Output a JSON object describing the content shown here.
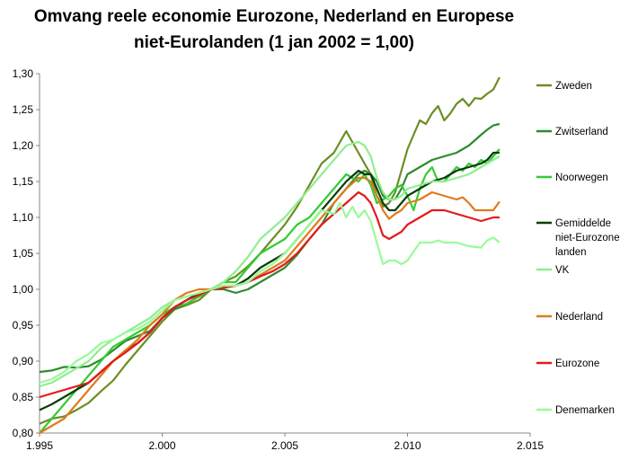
{
  "chart_data": {
    "type": "line",
    "title_lines": [
      "Omvang reele economie Eurozone, Nederland en Europese",
      "niet-Eurolanden (1 jan 2002 = 1,00)"
    ],
    "xlim": [
      1995,
      2015
    ],
    "ylim": [
      0.8,
      1.3
    ],
    "x_ticks": [
      1995,
      2000,
      2005,
      2010,
      2015
    ],
    "x_tick_labels": [
      "1.995",
      "2.000",
      "2.005",
      "2.010",
      "2.015"
    ],
    "y_ticks": [
      0.8,
      0.85,
      0.9,
      0.95,
      1.0,
      1.05,
      1.1,
      1.15,
      1.2,
      1.25,
      1.3
    ],
    "y_tick_labels": [
      "0,80",
      "0,85",
      "0,90",
      "0,95",
      "1,00",
      "1,05",
      "1,10",
      "1,15",
      "1,20",
      "1,25",
      "1,30"
    ],
    "grid": false,
    "legend_position": "right",
    "series": [
      {
        "name": "Zweden",
        "color": "#6b8e23",
        "x": [
          1995,
          1995.5,
          1996,
          1996.5,
          1997,
          1997.5,
          1998,
          1998.5,
          1999,
          1999.5,
          2000,
          2000.5,
          2001,
          2001.5,
          2002,
          2002.5,
          2003,
          2003.5,
          2004,
          2004.5,
          2005,
          2005.5,
          2006,
          2006.5,
          2007,
          2007.25,
          2007.5,
          2007.75,
          2008,
          2008.25,
          2008.5,
          2008.75,
          2009,
          2009.25,
          2009.5,
          2009.75,
          2010,
          2010.25,
          2010.5,
          2010.75,
          2011,
          2011.25,
          2011.5,
          2011.75,
          2012,
          2012.25,
          2012.5,
          2012.75,
          2013,
          2013.25,
          2013.5,
          2013.75
        ],
        "y": [
          0.813,
          0.82,
          0.823,
          0.832,
          0.842,
          0.858,
          0.873,
          0.895,
          0.915,
          0.935,
          0.955,
          0.972,
          0.978,
          0.985,
          1.0,
          1.01,
          1.018,
          1.032,
          1.05,
          1.07,
          1.09,
          1.115,
          1.145,
          1.175,
          1.19,
          1.205,
          1.22,
          1.205,
          1.19,
          1.175,
          1.16,
          1.13,
          1.115,
          1.12,
          1.135,
          1.165,
          1.195,
          1.215,
          1.235,
          1.23,
          1.245,
          1.255,
          1.235,
          1.245,
          1.258,
          1.265,
          1.255,
          1.266,
          1.265,
          1.272,
          1.278,
          1.295
        ]
      },
      {
        "name": "Zwitserland",
        "color": "#2e8b2e",
        "x": [
          1995,
          1995.5,
          1996,
          1996.5,
          1997,
          1997.5,
          1998,
          1998.5,
          1999,
          1999.5,
          2000,
          2000.5,
          2001,
          2001.5,
          2002,
          2002.5,
          2003,
          2003.5,
          2004,
          2004.5,
          2005,
          2005.5,
          2006,
          2006.5,
          2007,
          2007.5,
          2008,
          2008.25,
          2008.5,
          2008.75,
          2009,
          2009.25,
          2009.5,
          2009.75,
          2010,
          2010.5,
          2011,
          2011.5,
          2012,
          2012.5,
          2013,
          2013.25,
          2013.5,
          2013.75
        ],
        "y": [
          0.885,
          0.887,
          0.892,
          0.891,
          0.893,
          0.902,
          0.915,
          0.928,
          0.935,
          0.942,
          0.96,
          0.972,
          0.98,
          0.99,
          1.0,
          1.0,
          0.995,
          1.0,
          1.01,
          1.02,
          1.03,
          1.048,
          1.07,
          1.09,
          1.12,
          1.14,
          1.16,
          1.165,
          1.16,
          1.15,
          1.13,
          1.125,
          1.125,
          1.14,
          1.16,
          1.17,
          1.18,
          1.185,
          1.19,
          1.2,
          1.215,
          1.222,
          1.228,
          1.23
        ]
      },
      {
        "name": "Noorwegen",
        "color": "#33cc33",
        "x": [
          1995,
          1995.5,
          1996,
          1996.5,
          1997,
          1997.5,
          1998,
          1998.5,
          1999,
          1999.5,
          2000,
          2000.5,
          2001,
          2001.5,
          2002,
          2002.5,
          2003,
          2003.5,
          2004,
          2004.5,
          2005,
          2005.5,
          2006,
          2006.5,
          2007,
          2007.5,
          2008,
          2008.25,
          2008.5,
          2008.75,
          2009,
          2009.25,
          2009.5,
          2009.75,
          2010,
          2010.25,
          2010.5,
          2010.75,
          2011,
          2011.25,
          2011.5,
          2011.75,
          2012,
          2012.25,
          2012.5,
          2012.75,
          2013,
          2013.25,
          2013.5,
          2013.75
        ],
        "y": [
          0.8,
          0.82,
          0.84,
          0.86,
          0.88,
          0.9,
          0.92,
          0.93,
          0.94,
          0.95,
          0.965,
          0.975,
          0.98,
          0.99,
          1.0,
          1.01,
          1.01,
          1.03,
          1.05,
          1.06,
          1.07,
          1.09,
          1.1,
          1.12,
          1.14,
          1.16,
          1.15,
          1.16,
          1.145,
          1.12,
          1.125,
          1.13,
          1.14,
          1.145,
          1.13,
          1.11,
          1.14,
          1.16,
          1.17,
          1.15,
          1.15,
          1.16,
          1.17,
          1.165,
          1.175,
          1.17,
          1.18,
          1.175,
          1.185,
          1.195
        ]
      },
      {
        "name": "Gemiddelde niet-Eurozone landen",
        "label_lines": [
          "Gemiddelde",
          "niet-Eurozone",
          "landen"
        ],
        "color": "#0a3d0a",
        "x": [
          1995,
          1995.5,
          1996,
          1996.5,
          1997,
          1997.5,
          1998,
          1998.5,
          1999,
          1999.5,
          2000,
          2000.5,
          2001,
          2001.5,
          2002,
          2002.5,
          2003,
          2003.5,
          2004,
          2004.5,
          2005,
          2005.5,
          2006,
          2006.5,
          2007,
          2007.5,
          2008,
          2008.25,
          2008.5,
          2008.75,
          2009,
          2009.25,
          2009.5,
          2009.75,
          2010,
          2010.5,
          2011,
          2011.5,
          2012,
          2012.5,
          2013,
          2013.25,
          2013.5,
          2013.75
        ],
        "y": [
          0.832,
          0.84,
          0.85,
          0.86,
          0.87,
          0.885,
          0.9,
          0.915,
          0.925,
          0.94,
          0.96,
          0.975,
          0.985,
          0.995,
          1.0,
          1.003,
          1.005,
          1.015,
          1.03,
          1.04,
          1.05,
          1.07,
          1.09,
          1.11,
          1.13,
          1.15,
          1.165,
          1.16,
          1.16,
          1.14,
          1.12,
          1.11,
          1.11,
          1.12,
          1.13,
          1.14,
          1.15,
          1.155,
          1.165,
          1.17,
          1.175,
          1.18,
          1.19,
          1.19
        ]
      },
      {
        "name": "VK",
        "color": "#90ee90",
        "x": [
          1995,
          1995.5,
          1996,
          1996.5,
          1997,
          1997.5,
          1998,
          1998.5,
          1999,
          1999.5,
          2000,
          2000.5,
          2001,
          2001.5,
          2002,
          2002.5,
          2003,
          2003.5,
          2004,
          2004.5,
          2005,
          2005.5,
          2006,
          2006.5,
          2007,
          2007.5,
          2008,
          2008.25,
          2008.5,
          2008.75,
          2009,
          2009.25,
          2009.5,
          2009.75,
          2010,
          2010.5,
          2011,
          2011.5,
          2012,
          2012.5,
          2013,
          2013.25,
          2013.5,
          2013.75
        ],
        "y": [
          0.865,
          0.87,
          0.88,
          0.89,
          0.9,
          0.918,
          0.93,
          0.94,
          0.95,
          0.96,
          0.975,
          0.985,
          0.99,
          0.995,
          1.0,
          1.01,
          1.025,
          1.045,
          1.07,
          1.085,
          1.1,
          1.12,
          1.14,
          1.16,
          1.18,
          1.2,
          1.205,
          1.2,
          1.185,
          1.155,
          1.135,
          1.125,
          1.125,
          1.13,
          1.14,
          1.145,
          1.15,
          1.15,
          1.155,
          1.16,
          1.17,
          1.175,
          1.18,
          1.185
        ]
      },
      {
        "name": "Nederland",
        "color": "#e07a1f",
        "x": [
          1995,
          1995.5,
          1996,
          1996.5,
          1997,
          1997.5,
          1998,
          1998.5,
          1999,
          1999.5,
          2000,
          2000.5,
          2001,
          2001.5,
          2002,
          2002.5,
          2003,
          2003.5,
          2004,
          2004.5,
          2005,
          2005.5,
          2006,
          2006.5,
          2007,
          2007.5,
          2008,
          2008.25,
          2008.5,
          2008.75,
          2009,
          2009.25,
          2009.5,
          2009.75,
          2010,
          2010.5,
          2011,
          2011.5,
          2012,
          2012.25,
          2012.5,
          2012.75,
          2013,
          2013.5,
          2013.75
        ],
        "y": [
          0.8,
          0.81,
          0.82,
          0.84,
          0.86,
          0.88,
          0.9,
          0.915,
          0.93,
          0.95,
          0.965,
          0.985,
          0.995,
          1.0,
          1.0,
          1.005,
          1.005,
          1.01,
          1.02,
          1.03,
          1.04,
          1.06,
          1.08,
          1.1,
          1.12,
          1.14,
          1.155,
          1.155,
          1.15,
          1.13,
          1.11,
          1.098,
          1.105,
          1.11,
          1.12,
          1.125,
          1.135,
          1.13,
          1.125,
          1.128,
          1.12,
          1.11,
          1.11,
          1.11,
          1.122
        ]
      },
      {
        "name": "Eurozone",
        "color": "#e31a1c",
        "x": [
          1995,
          1995.5,
          1996,
          1996.5,
          1997,
          1997.5,
          1998,
          1998.5,
          1999,
          1999.5,
          2000,
          2000.5,
          2001,
          2001.5,
          2002,
          2002.5,
          2003,
          2003.5,
          2004,
          2004.5,
          2005,
          2005.5,
          2006,
          2006.5,
          2007,
          2007.5,
          2008,
          2008.25,
          2008.5,
          2008.75,
          2009,
          2009.25,
          2009.5,
          2009.75,
          2010,
          2010.5,
          2011,
          2011.5,
          2012,
          2012.5,
          2013,
          2013.5,
          2013.75
        ],
        "y": [
          0.85,
          0.855,
          0.86,
          0.865,
          0.87,
          0.885,
          0.9,
          0.912,
          0.925,
          0.94,
          0.96,
          0.975,
          0.985,
          0.992,
          1.0,
          1.002,
          1.005,
          1.01,
          1.018,
          1.025,
          1.035,
          1.05,
          1.07,
          1.09,
          1.105,
          1.12,
          1.135,
          1.13,
          1.12,
          1.1,
          1.075,
          1.07,
          1.075,
          1.08,
          1.09,
          1.1,
          1.11,
          1.11,
          1.105,
          1.1,
          1.095,
          1.1,
          1.1
        ]
      },
      {
        "name": "Denemarken",
        "color": "#98fb98",
        "x": [
          1995,
          1995.5,
          1996,
          1996.5,
          1997,
          1997.5,
          1998,
          1998.5,
          1999,
          1999.5,
          2000,
          2000.5,
          2001,
          2001.5,
          2002,
          2002.5,
          2003,
          2003.5,
          2004,
          2004.5,
          2005,
          2005.5,
          2006,
          2006.5,
          2007,
          2007.25,
          2007.5,
          2007.75,
          2008,
          2008.25,
          2008.5,
          2008.75,
          2009,
          2009.25,
          2009.5,
          2009.75,
          2010,
          2010.5,
          2011,
          2011.25,
          2011.5,
          2012,
          2012.5,
          2013,
          2013.25,
          2013.5,
          2013.75
        ],
        "y": [
          0.87,
          0.875,
          0.885,
          0.9,
          0.91,
          0.925,
          0.93,
          0.94,
          0.945,
          0.955,
          0.97,
          0.985,
          0.99,
          0.995,
          1.0,
          1.005,
          1.005,
          1.01,
          1.025,
          1.035,
          1.05,
          1.07,
          1.09,
          1.11,
          1.105,
          1.12,
          1.1,
          1.115,
          1.1,
          1.11,
          1.095,
          1.065,
          1.035,
          1.04,
          1.04,
          1.035,
          1.04,
          1.065,
          1.065,
          1.068,
          1.065,
          1.065,
          1.06,
          1.058,
          1.068,
          1.072,
          1.065
        ]
      }
    ]
  }
}
